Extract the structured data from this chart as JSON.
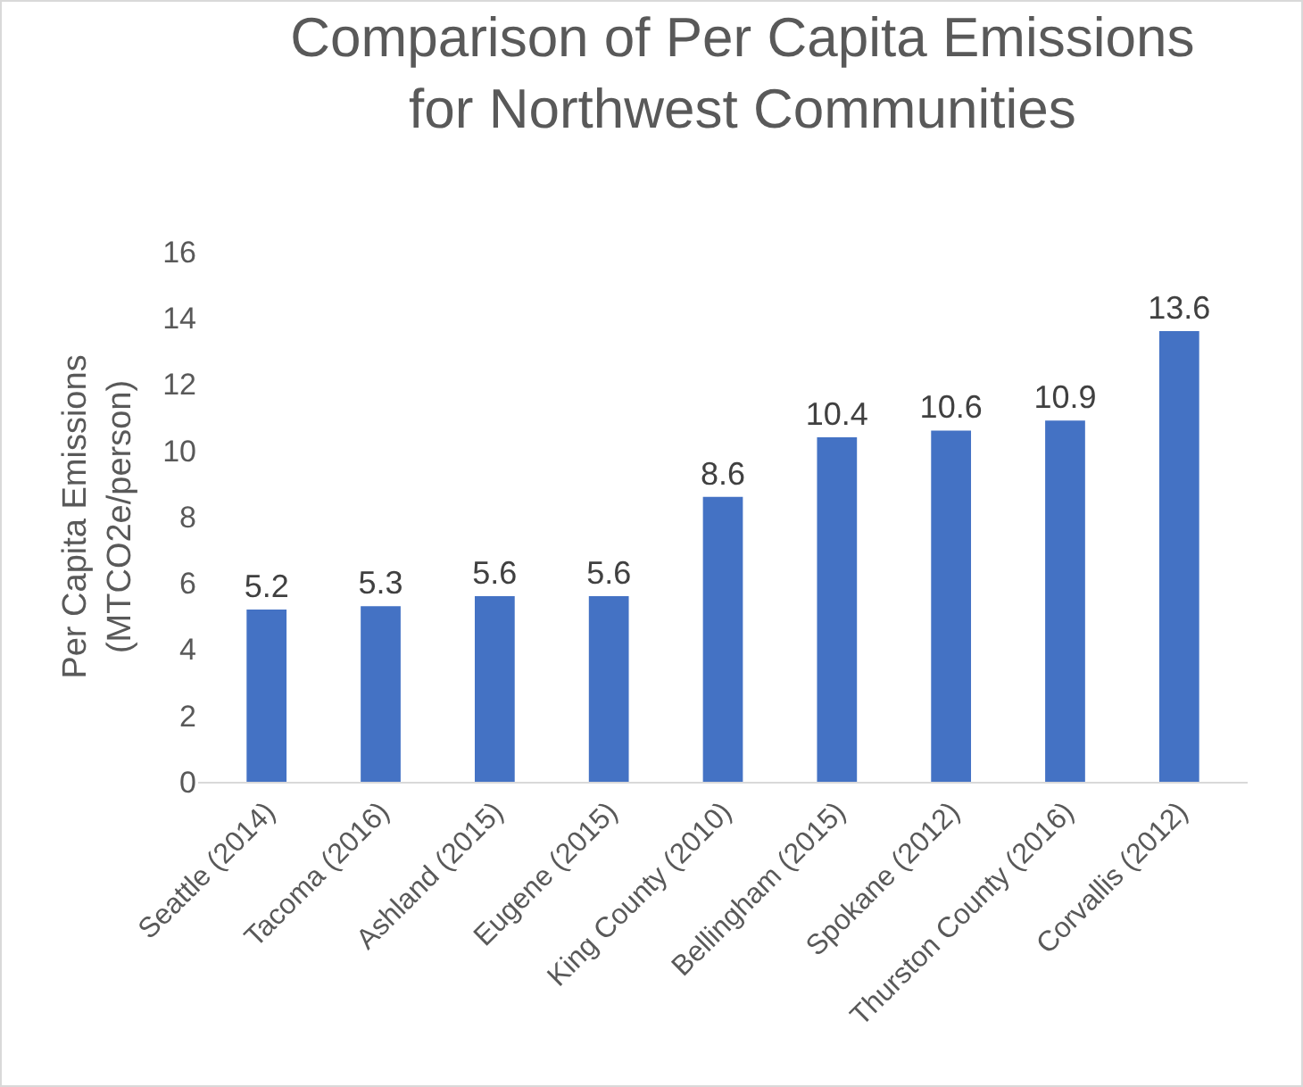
{
  "chart_data": {
    "type": "bar",
    "title": "Comparison of Per Capita Emissions\nfor Northwest Communities",
    "ylabel": "Per Capita Emissions\n(MTCO2e/person)",
    "categories": [
      "Seattle (2014)",
      "Tacoma (2016)",
      "Ashland (2015)",
      "Eugene (2015)",
      "King County (2010)",
      "Bellingham (2015)",
      "Spokane (2012)",
      "Thurston County (2016)",
      "Corvallis (2012)"
    ],
    "values": [
      5.2,
      5.3,
      5.6,
      5.6,
      8.6,
      10.4,
      10.6,
      10.9,
      13.6
    ],
    "color": "#4472c4",
    "ylim": [
      0,
      16
    ],
    "yticks": [
      0,
      2,
      4,
      6,
      8,
      10,
      12,
      14,
      16
    ],
    "grid": false,
    "data_labels": true,
    "legend": false
  }
}
